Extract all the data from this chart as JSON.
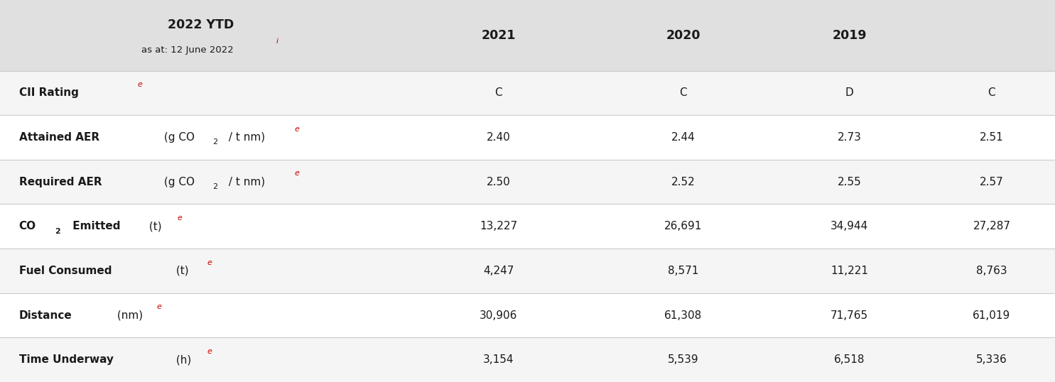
{
  "title_col1": "2022 YTD",
  "title_col1_sub": "as at: 12 June 2022",
  "title_col1_super": "i",
  "title_col2": "2021",
  "title_col3": "2020",
  "title_col4": "2019",
  "header_bg": "#e0e0e0",
  "row_bg_odd": "#f5f5f5",
  "row_bg_even": "#ffffff",
  "text_color": "#1a1a1a",
  "red_color": "#cc0000",
  "header_text_color": "#1a1a1a",
  "rows": [
    {
      "label_bold": "CII Rating",
      "label_normal": "",
      "label_sub": "",
      "label_unit": "",
      "superscript": "e",
      "values": [
        "C",
        "C",
        "D",
        "C"
      ],
      "co2_first": false,
      "has_co2_sub": false
    },
    {
      "label_bold": "Attained AER",
      "label_normal": " (g CO",
      "label_sub": "2",
      "label_unit": " / t nm)",
      "superscript": "e",
      "values": [
        "2.40",
        "2.44",
        "2.73",
        "2.51"
      ],
      "co2_first": false,
      "has_co2_sub": true
    },
    {
      "label_bold": "Required AER",
      "label_normal": " (g CO",
      "label_sub": "2",
      "label_unit": " / t nm)",
      "superscript": "e",
      "values": [
        "2.50",
        "2.52",
        "2.55",
        "2.57"
      ],
      "co2_first": false,
      "has_co2_sub": true
    },
    {
      "label_bold": "CO",
      "label_sub2": "2",
      "label_normal": " Emitted",
      "label_unit": " (t)",
      "superscript": "e",
      "values": [
        "13,227",
        "26,691",
        "34,944",
        "27,287"
      ],
      "co2_first": true,
      "has_co2_sub": false
    },
    {
      "label_bold": "Fuel Consumed",
      "label_normal": " (t)",
      "label_sub": "",
      "label_unit": "",
      "superscript": "e",
      "values": [
        "4,247",
        "8,571",
        "11,221",
        "8,763"
      ],
      "co2_first": false,
      "has_co2_sub": false
    },
    {
      "label_bold": "Distance",
      "label_normal": " (nm)",
      "label_sub": "",
      "label_unit": "",
      "superscript": "e",
      "values": [
        "30,906",
        "61,308",
        "71,765",
        "61,019"
      ],
      "co2_first": false,
      "has_co2_sub": false
    },
    {
      "label_bold": "Time Underway",
      "label_normal": " (h)",
      "label_sub": "",
      "label_unit": "",
      "superscript": "e",
      "values": [
        "3,154",
        "5,539",
        "6,518",
        "5,336"
      ],
      "co2_first": false,
      "has_co2_sub": false
    }
  ],
  "col_boundaries": [
    0.0,
    0.38,
    0.565,
    0.73,
    0.88,
    1.0
  ],
  "figsize": [
    14.85,
    5.38
  ],
  "dpi": 100
}
